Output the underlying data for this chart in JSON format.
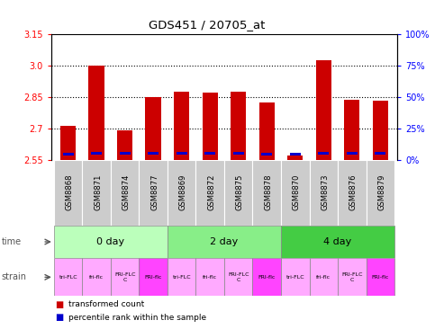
{
  "title": "GDS451 / 20705_at",
  "samples": [
    "GSM8868",
    "GSM8871",
    "GSM8874",
    "GSM8877",
    "GSM8869",
    "GSM8872",
    "GSM8875",
    "GSM8878",
    "GSM8870",
    "GSM8873",
    "GSM8876",
    "GSM8879"
  ],
  "red_values": [
    2.71,
    3.0,
    2.69,
    2.85,
    2.875,
    2.872,
    2.875,
    2.822,
    2.568,
    3.025,
    2.838,
    2.833
  ],
  "blue_heights": [
    2.568,
    2.575,
    2.572,
    2.572,
    2.572,
    2.572,
    2.572,
    2.568,
    2.568,
    2.572,
    2.572,
    2.572
  ],
  "ylim_left": [
    2.55,
    3.15
  ],
  "yticks_left": [
    2.55,
    2.7,
    2.85,
    3.0,
    3.15
  ],
  "ylim_right": [
    0,
    100
  ],
  "yticks_right": [
    0,
    25,
    50,
    75,
    100
  ],
  "time_groups": [
    {
      "label": "0 day",
      "start": 0,
      "end": 4,
      "color": "#bbffbb"
    },
    {
      "label": "2 day",
      "start": 4,
      "end": 8,
      "color": "#88ee88"
    },
    {
      "label": "4 day",
      "start": 8,
      "end": 12,
      "color": "#44cc44"
    }
  ],
  "strain_labels": [
    "tri-FLC",
    "fri-flc",
    "FRI-FLC\nC",
    "FRI-flc",
    "tri-FLC",
    "fri-flc",
    "FRI-FLC\nC",
    "FRI-flc",
    "tri-FLC",
    "fri-flc",
    "FRI-FLC\nC",
    "FRI-flc"
  ],
  "strain_colors": [
    "#ffaaff",
    "#ffaaff",
    "#ffaaff",
    "#ff44ff",
    "#ffaaff",
    "#ffaaff",
    "#ffaaff",
    "#ff44ff",
    "#ffaaff",
    "#ffaaff",
    "#ffaaff",
    "#ff44ff"
  ],
  "bar_width": 0.55,
  "red_color": "#cc0000",
  "blue_color": "#0000cc",
  "grid_color": "#888888",
  "plot_bg": "#ffffff",
  "sample_bg": "#cccccc",
  "legend_red": "transformed count",
  "legend_blue": "percentile rank within the sample",
  "time_label": "time",
  "strain_label": "strain"
}
